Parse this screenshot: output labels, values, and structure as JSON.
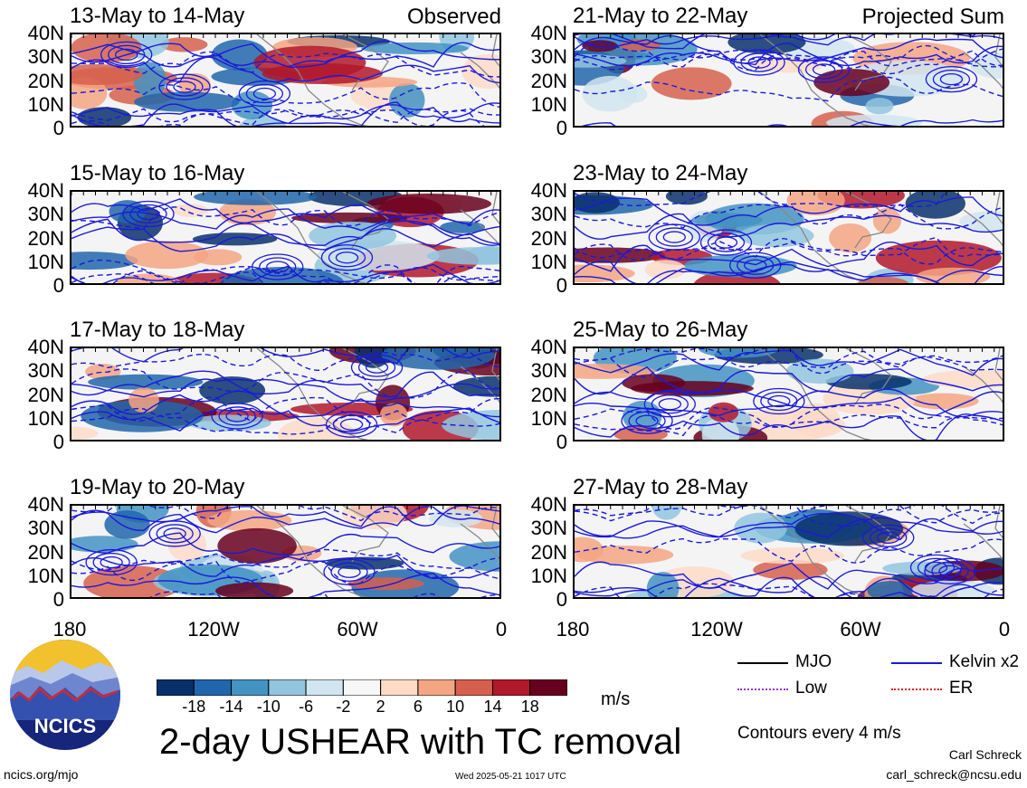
{
  "chart_data": [
    {
      "type": "heatmap",
      "title": "13-May to 14-May",
      "corner_label": "Observed",
      "column": "left",
      "row": 0
    },
    {
      "type": "heatmap",
      "title": "21-May to 22-May",
      "corner_label": "Projected Sum",
      "column": "right",
      "row": 0
    },
    {
      "type": "heatmap",
      "title": "15-May to 16-May",
      "corner_label": "",
      "column": "left",
      "row": 1
    },
    {
      "type": "heatmap",
      "title": "23-May to 24-May",
      "corner_label": "",
      "column": "right",
      "row": 1
    },
    {
      "type": "heatmap",
      "title": "17-May to 18-May",
      "corner_label": "",
      "column": "left",
      "row": 2
    },
    {
      "type": "heatmap",
      "title": "25-May to 26-May",
      "corner_label": "",
      "column": "right",
      "row": 2
    },
    {
      "type": "heatmap",
      "title": "19-May to 20-May",
      "corner_label": "",
      "column": "left",
      "row": 3
    },
    {
      "type": "heatmap",
      "title": "27-May to 28-May",
      "corner_label": "",
      "column": "right",
      "row": 3
    }
  ],
  "axes": {
    "y_ticks": [
      "40N",
      "30N",
      "20N",
      "10N",
      "0"
    ],
    "x_ticks": [
      "180",
      "120W",
      "60W",
      "0"
    ],
    "xlim": [
      -180,
      0
    ],
    "ylim": [
      0,
      40
    ]
  },
  "colorbar": {
    "labels": [
      "-18",
      "-14",
      "-10",
      "-6",
      "-2",
      "2",
      "6",
      "10",
      "14",
      "18"
    ],
    "colors": [
      "#08306b",
      "#2166ac",
      "#4393c3",
      "#92c5de",
      "#d1e5f0",
      "#f7f7f7",
      "#fddbc7",
      "#f4a582",
      "#d6604d",
      "#b2182b",
      "#67001f"
    ],
    "unit": "m/s"
  },
  "legend": {
    "items": [
      {
        "label": "MJO",
        "color": "#000000"
      },
      {
        "label": "Kelvin x2",
        "color": "#1a1adb"
      },
      {
        "label": "Low",
        "color": "#9b30d9"
      },
      {
        "label": "ER",
        "color": "#e02020"
      }
    ],
    "note": "Contours every 4 m/s"
  },
  "title": "2-day USHEAR with TC removal",
  "logo_text": "NCICS",
  "footer": {
    "url": "ncics.org/mjo",
    "timestamp": "Wed 2025-05-21 1017 UTC",
    "author": "Carl Schreck",
    "email": "carl_schreck@ncsu.edu"
  },
  "theme": {
    "contour_color": "#1a1adb",
    "land_color": "#888888"
  }
}
